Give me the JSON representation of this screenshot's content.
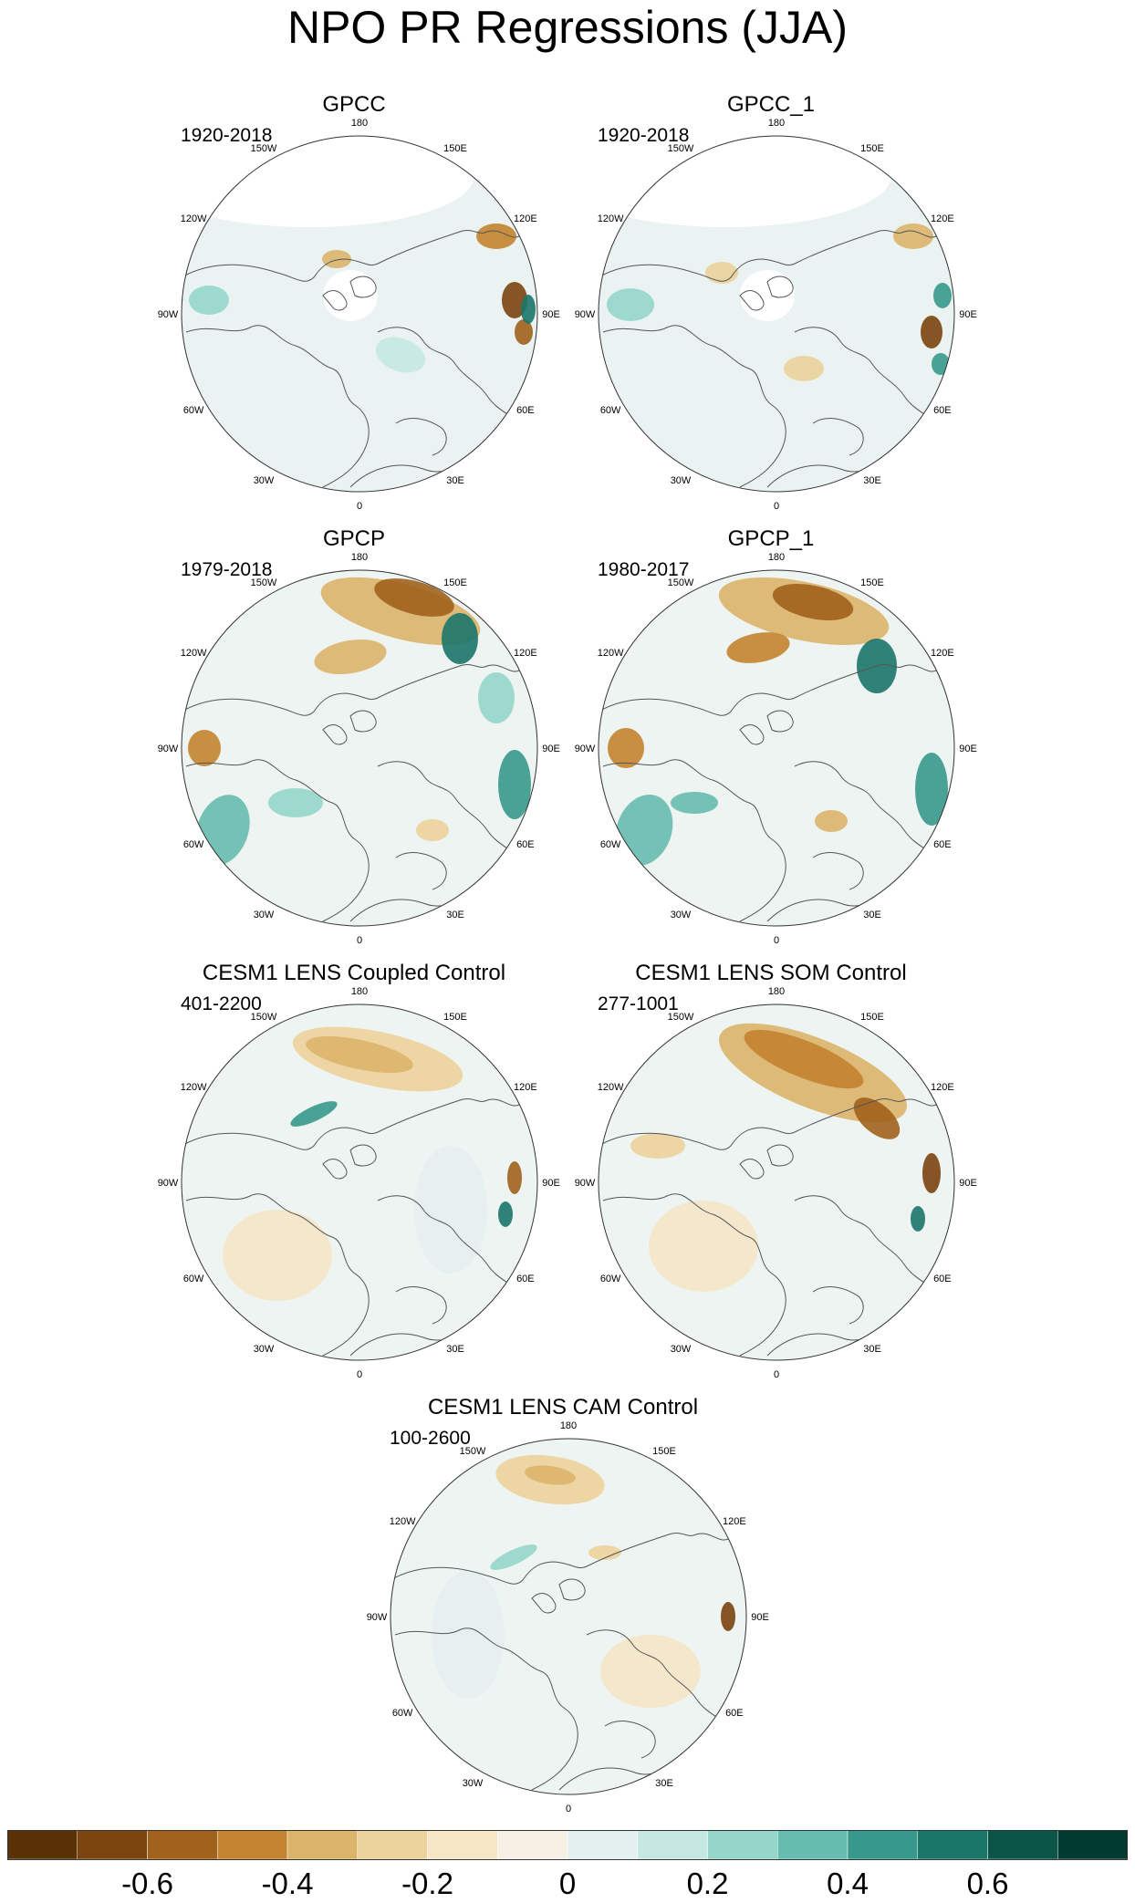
{
  "title": "NPO PR Regressions (JJA)",
  "panels": [
    {
      "id": "gpcc",
      "title": "GPCC",
      "period": "1920-2018"
    },
    {
      "id": "gpcc1",
      "title": "GPCC_1",
      "period": "1920-2018"
    },
    {
      "id": "gpcp",
      "title": "GPCP",
      "period": "1979-2018"
    },
    {
      "id": "gpcp1",
      "title": "GPCP_1",
      "period": "1980-2017"
    },
    {
      "id": "coupled",
      "title": "CESM1 LENS Coupled Control",
      "period": "401-2200"
    },
    {
      "id": "som",
      "title": "CESM1 LENS SOM Control",
      "period": "277-1001"
    },
    {
      "id": "cam",
      "title": "CESM1 LENS CAM Control",
      "period": "100-2600"
    }
  ],
  "map_longitude_labels": [
    "180",
    "150E",
    "120E",
    "90E",
    "60E",
    "30E",
    "0",
    "30W",
    "60W",
    "90W",
    "120W",
    "150W"
  ],
  "colorbar": {
    "colors": [
      "#5a3005",
      "#7a440f",
      "#a0621c",
      "#c3832f",
      "#dbb46a",
      "#ecd29b",
      "#f5e6c6",
      "#f6f1e4",
      "#e4f0ef",
      "#c5e8e2",
      "#95d6ca",
      "#66bcae",
      "#37998c",
      "#1b766a",
      "#0b5448",
      "#013a2e"
    ],
    "tick_values": [
      -0.6,
      -0.4,
      -0.2,
      0,
      0.2,
      0.4,
      0.6
    ],
    "tick_labels": [
      "-0.6",
      "-0.4",
      "-0.2",
      "0",
      "0.2",
      "0.4",
      "0.6"
    ]
  }
}
